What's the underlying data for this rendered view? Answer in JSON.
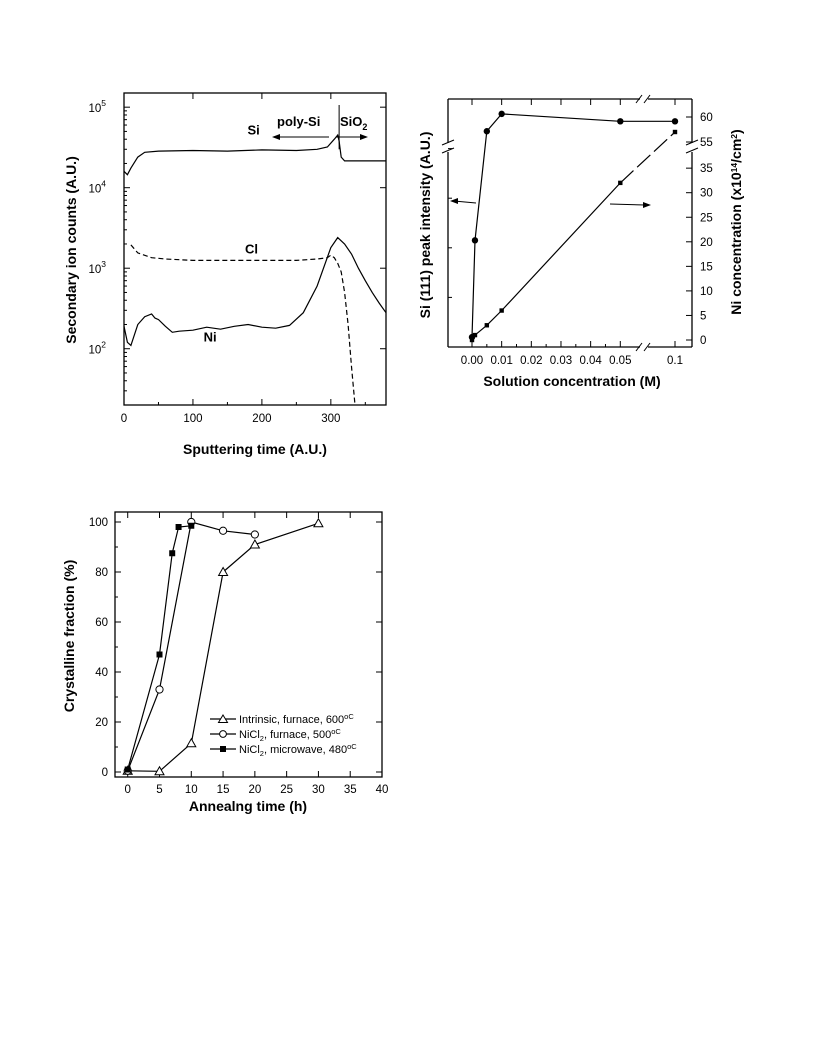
{
  "chart_data": [
    {
      "type": "line",
      "xlabel": "Sputtering time (A.U.)",
      "ylabel": "Secondary ion counts (A.U.)",
      "xlim": [
        0,
        380
      ],
      "ylim": [
        20,
        150000
      ],
      "yscale": "log",
      "xticks": [
        0,
        100,
        200,
        300
      ],
      "yticks": [
        {
          "v": 100,
          "b": "10",
          "e": "2"
        },
        {
          "v": 1000,
          "b": "10",
          "e": "3"
        },
        {
          "v": 10000,
          "b": "10",
          "e": "4"
        },
        {
          "v": 100000,
          "b": "10",
          "e": "5"
        }
      ],
      "annotations": {
        "poly_si": "poly-Si",
        "sio2_base": "SiO",
        "sio2_sub": "2",
        "boundary_x": 312
      },
      "series": [
        {
          "name": "Si",
          "dash": false,
          "label_at": [
            188,
            46000
          ],
          "x": [
            0,
            5,
            10,
            20,
            30,
            50,
            100,
            150,
            200,
            250,
            280,
            295,
            305,
            310,
            312,
            315,
            320,
            340,
            380
          ],
          "y": [
            16000,
            14500,
            17500,
            24000,
            27500,
            28500,
            29000,
            28500,
            29500,
            29000,
            30000,
            32000,
            40000,
            45000,
            38000,
            24000,
            21500,
            21500,
            21500
          ]
        },
        {
          "name": "Cl",
          "dash": true,
          "label_at": [
            185,
            1520
          ],
          "x": [
            10,
            20,
            40,
            60,
            100,
            150,
            200,
            250,
            280,
            295,
            300,
            305,
            310,
            315,
            320,
            325,
            330,
            335
          ],
          "y": [
            1950,
            1550,
            1350,
            1300,
            1250,
            1250,
            1250,
            1250,
            1300,
            1350,
            1450,
            1350,
            1150,
            900,
            500,
            200,
            60,
            20
          ]
        },
        {
          "name": "Ni",
          "dash": false,
          "label_at": [
            125,
            123
          ],
          "x": [
            0,
            5,
            10,
            20,
            30,
            40,
            45,
            50,
            60,
            70,
            80,
            100,
            120,
            140,
            160,
            180,
            200,
            220,
            240,
            260,
            280,
            300,
            310,
            320,
            330,
            340,
            350,
            360,
            370,
            380
          ],
          "y": [
            190,
            120,
            110,
            200,
            250,
            270,
            240,
            230,
            190,
            160,
            165,
            170,
            185,
            175,
            190,
            200,
            185,
            180,
            195,
            280,
            600,
            1800,
            2400,
            2000,
            1500,
            1000,
            700,
            500,
            370,
            280
          ]
        }
      ]
    },
    {
      "type": "line",
      "xlabel": "Solution concentration (M)",
      "ylabel_left": "Si (111) peak intensity (A.U.)",
      "ylabel_right_base": "Ni concentration (x10",
      "ylabel_right_sup": "14",
      "ylabel_right_tail": "/cm",
      "ylabel_right_sup2": "2",
      "ylabel_right_end": ")",
      "xticks": [
        "0.00",
        "0.01",
        "0.02",
        "0.03",
        "0.04",
        "0.05",
        "0.1"
      ],
      "xtick_values": [
        0.0,
        0.01,
        0.02,
        0.03,
        0.04,
        0.05,
        0.1
      ],
      "yticks_right": [
        0,
        5,
        10,
        15,
        20,
        25,
        30,
        35,
        55,
        60
      ],
      "series": [
        {
          "name": "Si (111) peak intensity",
          "axis": "left",
          "marker": "circle",
          "x": [
            0.0,
            0.001,
            0.005,
            0.01,
            0.05,
            0.1
          ],
          "y_rel": [
            0.04,
            0.43,
            0.87,
            0.94,
            0.91,
            0.91
          ]
        },
        {
          "name": "Ni concentration",
          "axis": "right",
          "marker": "square",
          "x": [
            0.0,
            0.001,
            0.005,
            0.01,
            0.05,
            0.1
          ],
          "y": [
            0,
            1,
            3,
            6,
            32,
            57
          ]
        }
      ]
    },
    {
      "type": "line",
      "xlabel": "Annealng time (h)",
      "ylabel": "Crystalline fraction (%)",
      "xlim": [
        -2,
        40
      ],
      "ylim": [
        -2,
        104
      ],
      "xticks": [
        0,
        5,
        10,
        15,
        20,
        25,
        30,
        35,
        40
      ],
      "yticks": [
        0,
        20,
        40,
        60,
        80,
        100
      ],
      "series": [
        {
          "name": "Intrinsic, furnace, 600",
          "unit": "oC",
          "marker": "triangle",
          "x": [
            0,
            5,
            10,
            15,
            20,
            30
          ],
          "y": [
            0.5,
            0.3,
            11.5,
            80,
            91,
            99.5
          ]
        },
        {
          "name_base": "NiCl",
          "name_sub": "2",
          "name_tail": ", furnace, 500",
          "unit": "oC",
          "marker": "circle-open",
          "x": [
            0,
            5,
            10,
            15,
            20
          ],
          "y": [
            0.5,
            33,
            100,
            96.5,
            95
          ]
        },
        {
          "name_base": "NiCl",
          "name_sub": "2",
          "name_tail": ", microwave, 480",
          "unit": "oC",
          "marker": "square",
          "x": [
            0,
            5,
            7,
            8,
            10
          ],
          "y": [
            1,
            47,
            87.5,
            98,
            98.5
          ]
        }
      ]
    }
  ]
}
